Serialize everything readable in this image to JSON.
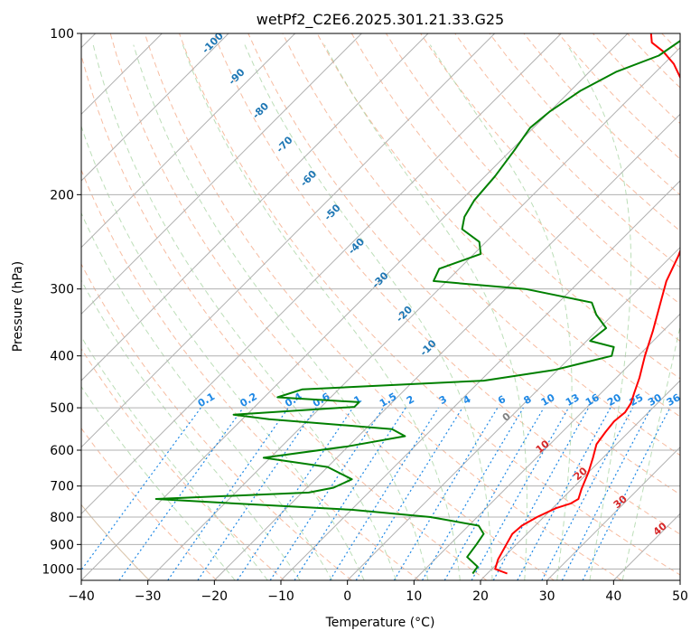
{
  "chart_data": {
    "type": "skew-t log-p",
    "title": "wetPf2_C2E6.2025.301.21.33.G25",
    "xlabel": "Temperature (°C)",
    "ylabel": "Pressure (hPa)",
    "xlim": [
      -40,
      50
    ],
    "ylim": [
      1050,
      100
    ],
    "y_scale": "log",
    "grid": true,
    "x_ticks": [
      -40,
      -30,
      -20,
      -10,
      0,
      10,
      20,
      30,
      40,
      50
    ],
    "x_tick_labels": [
      "−40",
      "−30",
      "−20",
      "−10",
      "0",
      "10",
      "20",
      "30",
      "40",
      "50"
    ],
    "y_ticks": [
      100,
      200,
      300,
      400,
      500,
      600,
      700,
      800,
      900,
      1000
    ],
    "y_tick_labels": [
      "100",
      "200",
      "300",
      "400",
      "500",
      "600",
      "700",
      "800",
      "900",
      "1000"
    ],
    "colors": {
      "temperature": "#ff0000",
      "dewpoint": "#008000",
      "isotherm": "#b0b0b0",
      "dry_adiabat": "#f4a582",
      "moist_adiabat": "#a6d3a0",
      "mixing_ratio": "#1e88e5",
      "isotherm_label": "#1f77b4",
      "moist_label": "#d62728",
      "zero_label": "#808080",
      "dry_adiabat_outer": "#c8a882"
    },
    "series": [
      {
        "key": "temperature",
        "values": [
          [
            23.0,
            1020
          ],
          [
            20.5,
            1000
          ],
          [
            19.5,
            960
          ],
          [
            18.5,
            900
          ],
          [
            17.8,
            860
          ],
          [
            18.0,
            830
          ],
          [
            19.0,
            800
          ],
          [
            20.5,
            770
          ],
          [
            22.0,
            755
          ],
          [
            22.5,
            740
          ],
          [
            21.5,
            710
          ],
          [
            20.0,
            660
          ],
          [
            18.5,
            620
          ],
          [
            17.0,
            585
          ],
          [
            16.5,
            555
          ],
          [
            16.2,
            530
          ],
          [
            16.5,
            510
          ],
          [
            16.0,
            490
          ],
          [
            15.0,
            470
          ],
          [
            13.5,
            440
          ],
          [
            11.0,
            400
          ],
          [
            8.5,
            360
          ],
          [
            5.5,
            320
          ],
          [
            3.0,
            290
          ],
          [
            1.0,
            260
          ],
          [
            -1.5,
            232
          ],
          [
            -5.0,
            205
          ],
          [
            -9.0,
            180
          ],
          [
            -13.0,
            160
          ],
          [
            -17.0,
            145
          ],
          [
            -21.0,
            132
          ],
          [
            -25.0,
            122
          ],
          [
            -28.5,
            114
          ],
          [
            -32.0,
            108
          ],
          [
            -35.0,
            104
          ],
          [
            -36.5,
            100
          ]
        ]
      },
      {
        "key": "dewpoint",
        "values": [
          [
            17.8,
            1020
          ],
          [
            17.5,
            990
          ],
          [
            14.5,
            950
          ],
          [
            14.0,
            900
          ],
          [
            13.5,
            860
          ],
          [
            11.5,
            830
          ],
          [
            3.0,
            800
          ],
          [
            -10.0,
            775
          ],
          [
            -28.0,
            755
          ],
          [
            -41.0,
            740
          ],
          [
            -19.0,
            720
          ],
          [
            -16.0,
            705
          ],
          [
            -14.5,
            680
          ],
          [
            -20.0,
            645
          ],
          [
            -31.0,
            620
          ],
          [
            -20.0,
            590
          ],
          [
            -13.0,
            565
          ],
          [
            -16.0,
            548
          ],
          [
            -36.0,
            525
          ],
          [
            -42.0,
            515
          ],
          [
            -25.0,
            498
          ],
          [
            -25.0,
            488
          ],
          [
            -38.0,
            478
          ],
          [
            -35.5,
            462
          ],
          [
            -9.5,
            445
          ],
          [
            -0.5,
            425
          ],
          [
            6.0,
            400
          ],
          [
            5.0,
            385
          ],
          [
            0.5,
            375
          ],
          [
            1.0,
            355
          ],
          [
            -2.5,
            335
          ],
          [
            -5.0,
            318
          ],
          [
            -17.0,
            300
          ],
          [
            -32.0,
            290
          ],
          [
            -33.0,
            275
          ],
          [
            -29.0,
            258
          ],
          [
            -31.0,
            245
          ],
          [
            -35.5,
            232
          ],
          [
            -37.0,
            220
          ],
          [
            -38.0,
            205
          ],
          [
            -38.5,
            185
          ],
          [
            -39.5,
            165
          ],
          [
            -40.5,
            150
          ],
          [
            -40.0,
            140
          ],
          [
            -38.5,
            128
          ],
          [
            -36.0,
            118
          ],
          [
            -32.0,
            110
          ],
          [
            -30.5,
            100
          ]
        ]
      }
    ],
    "isotherm_labels": [
      {
        "text": "-100",
        "t": -100
      },
      {
        "text": "-90",
        "t": -90
      },
      {
        "text": "-80",
        "t": -80
      },
      {
        "text": "-70",
        "t": -70
      },
      {
        "text": "-60",
        "t": -60
      },
      {
        "text": "-50",
        "t": -50
      },
      {
        "text": "-40",
        "t": -40
      },
      {
        "text": "-30",
        "t": -30
      },
      {
        "text": "-20",
        "t": -20
      },
      {
        "text": "-10",
        "t": -10
      }
    ],
    "mixing_ratio_labels": [
      "0.1",
      "0.2",
      "0.4",
      "0.6",
      "1",
      "1.5",
      "2",
      "3",
      "4",
      "6",
      "8",
      "10",
      "13",
      "16",
      "20",
      "25",
      "30",
      "36"
    ],
    "mixing_ratio_values": [
      0.1,
      0.2,
      0.4,
      0.6,
      1,
      1.5,
      2,
      3,
      4,
      6,
      8,
      10,
      13,
      16,
      20,
      25,
      30,
      36
    ],
    "moist_labels": [
      {
        "text": "0",
        "t": 0
      },
      {
        "text": "10",
        "t": 10
      },
      {
        "text": "20",
        "t": 20
      },
      {
        "text": "30",
        "t": 30
      },
      {
        "text": "40",
        "t": 40
      }
    ]
  }
}
